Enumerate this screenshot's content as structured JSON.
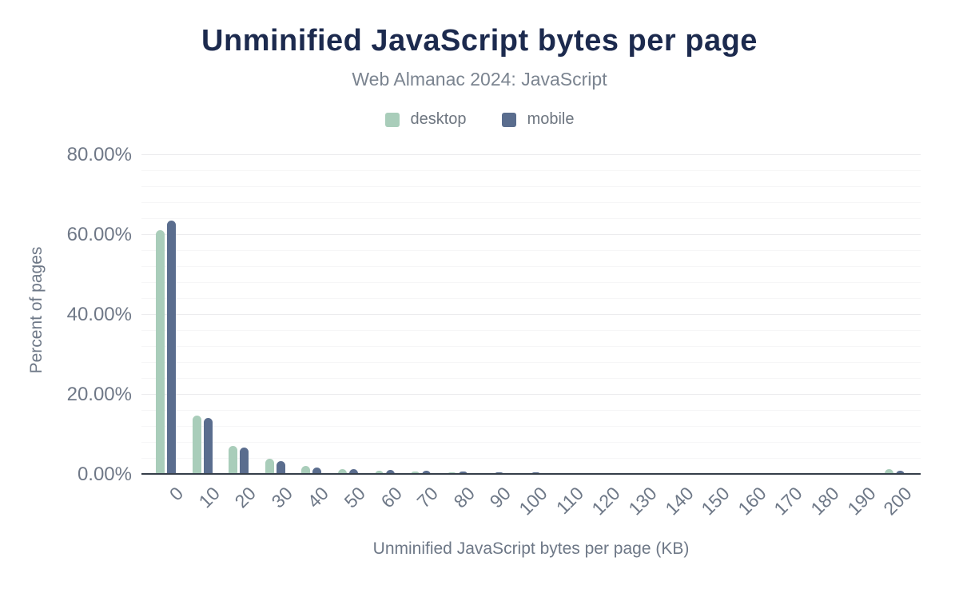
{
  "title": "Unminified JavaScript bytes per page",
  "subtitle": "Web Almanac 2024: JavaScript",
  "legend": [
    {
      "label": "desktop",
      "color": "#a9cdba"
    },
    {
      "label": "mobile",
      "color": "#5a6d8e"
    }
  ],
  "colors": {
    "title": "#1c2a4e",
    "subtitle": "#7b8490",
    "axis_text": "#6e7887",
    "axis_line": "#353e49",
    "grid_major": "#ececee",
    "grid_minor": "#f6f6f7",
    "background": "#ffffff",
    "desktop": "#a9cdba",
    "mobile": "#5a6d8e"
  },
  "chart_data": {
    "type": "bar",
    "title": "Unminified JavaScript bytes per page",
    "subtitle": "Web Almanac 2024: JavaScript",
    "xlabel": "Unminified JavaScript bytes per page (KB)",
    "ylabel": "Percent of pages",
    "legend_position": "top",
    "grid": "horizontal only; minor lines every 4%, major lines every 20%",
    "ylim": [
      0,
      83.2
    ],
    "y_ticks": [
      {
        "value": 0,
        "label": "0.00%"
      },
      {
        "value": 20,
        "label": "20.00%"
      },
      {
        "value": 40,
        "label": "40.00%"
      },
      {
        "value": 60,
        "label": "60.00%"
      },
      {
        "value": 80,
        "label": "80.00%"
      }
    ],
    "minor_step": 4,
    "categories": [
      "0",
      "10",
      "20",
      "30",
      "40",
      "50",
      "60",
      "70",
      "80",
      "90",
      "100",
      "110",
      "120",
      "130",
      "140",
      "150",
      "160",
      "170",
      "180",
      "190",
      "200"
    ],
    "series": [
      {
        "name": "desktop",
        "color": "#a9cdba",
        "values": [
          61.2,
          14.8,
          7.3,
          4.0,
          2.3,
          1.5,
          1.1,
          0.9,
          0.6,
          0.5,
          0.45,
          0.5,
          0.45,
          0.4,
          0.4,
          0.35,
          0.35,
          0.3,
          0.3,
          0.3,
          1.5
        ]
      },
      {
        "name": "mobile",
        "color": "#5a6d8e",
        "values": [
          63.7,
          14.2,
          6.8,
          3.5,
          1.9,
          1.4,
          1.2,
          1.0,
          0.75,
          0.6,
          0.55,
          0.5,
          0.5,
          0.45,
          0.4,
          0.4,
          0.35,
          0.35,
          0.3,
          0.3,
          1.1
        ]
      }
    ]
  }
}
